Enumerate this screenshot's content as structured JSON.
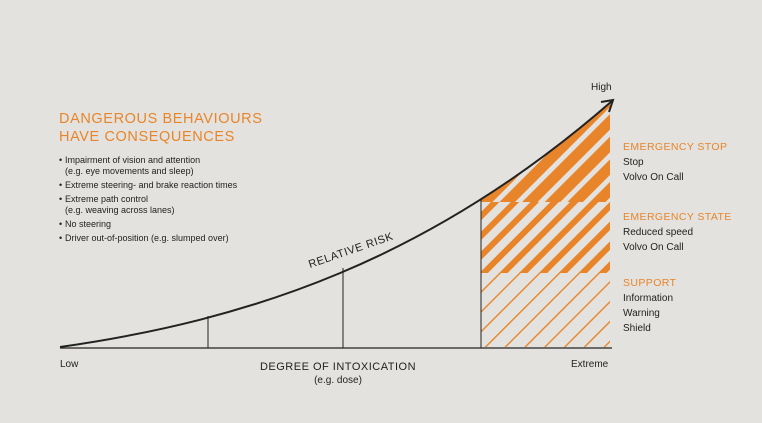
{
  "title_lines": [
    "DANGEROUS BEHAVIOURS",
    "HAVE CONSEQUENCES"
  ],
  "bullets": [
    {
      "text": "Impairment of vision and attention",
      "sub": "(e.g. eye movements and sleep)"
    },
    {
      "text": "Extreme steering- and brake reaction times",
      "sub": ""
    },
    {
      "text": "Extreme path control",
      "sub": "(e.g. weaving across lanes)"
    },
    {
      "text": "No steering",
      "sub": ""
    },
    {
      "text": "Driver out-of-position (e.g. slumped over)",
      "sub": ""
    }
  ],
  "curve_label": "RELATIVE RISK",
  "y_high_label": "High",
  "x_low_label": "Low",
  "x_high_label": "Extreme",
  "x_axis_title": "DEGREE OF INTOXICATION",
  "x_axis_subtitle": "(e.g. dose)",
  "zones": [
    {
      "heading": "EMERGENCY STOP",
      "items": [
        "Stop",
        "Volvo On Call"
      ]
    },
    {
      "heading": "EMERGENCY STATE",
      "items": [
        "Reduced speed",
        "Volvo On Call"
      ]
    },
    {
      "heading": "SUPPORT",
      "items": [
        "Information",
        "Warning",
        "Shield"
      ]
    }
  ],
  "colors": {
    "accent": "#e8852a",
    "line": "#222222",
    "background": "#e4e2de"
  }
}
